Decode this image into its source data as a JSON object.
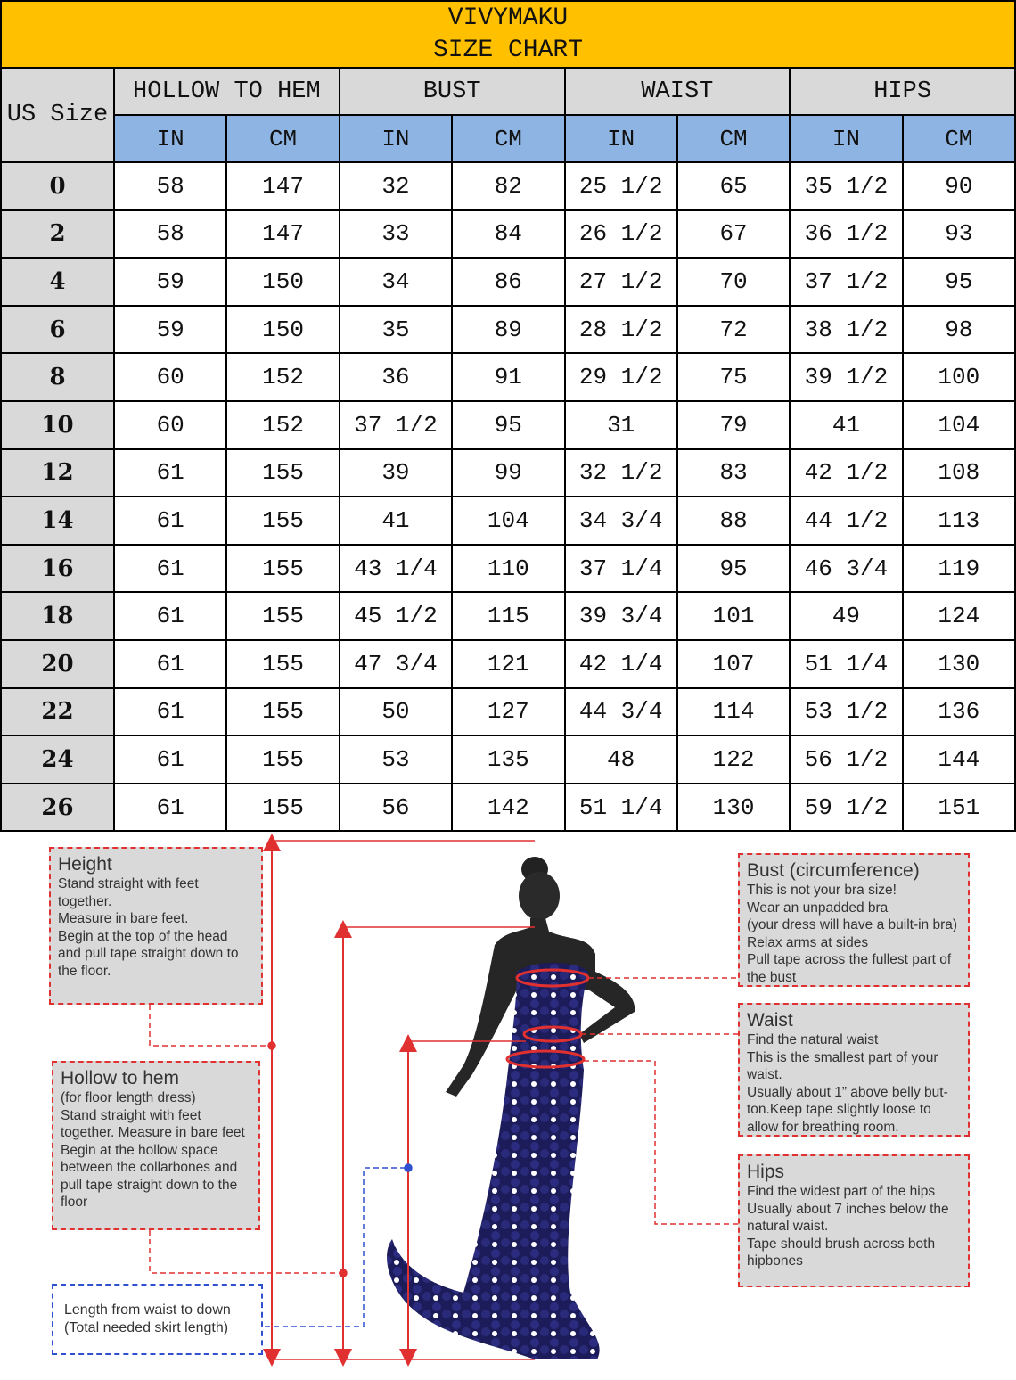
{
  "header": {
    "brand": "VIVYMAKU",
    "title": "SIZE CHART"
  },
  "table": {
    "size_header": "US Size",
    "groups": [
      "HOLLOW TO HEM",
      "BUST",
      "WAIST",
      "HIPS"
    ],
    "units": [
      "IN",
      "CM",
      "IN",
      "CM",
      "IN",
      "CM",
      "IN",
      "CM"
    ],
    "rows": [
      [
        "0",
        "58",
        "147",
        "32",
        "82",
        "25 1/2",
        "65",
        "35 1/2",
        "90"
      ],
      [
        "2",
        "58",
        "147",
        "33",
        "84",
        "26 1/2",
        "67",
        "36 1/2",
        "93"
      ],
      [
        "4",
        "59",
        "150",
        "34",
        "86",
        "27 1/2",
        "70",
        "37 1/2",
        "95"
      ],
      [
        "6",
        "59",
        "150",
        "35",
        "89",
        "28 1/2",
        "72",
        "38 1/2",
        "98"
      ],
      [
        "8",
        "60",
        "152",
        "36",
        "91",
        "29 1/2",
        "75",
        "39 1/2",
        "100"
      ],
      [
        "10",
        "60",
        "152",
        "37 1/2",
        "95",
        "31",
        "79",
        "41",
        "104"
      ],
      [
        "12",
        "61",
        "155",
        "39",
        "99",
        "32 1/2",
        "83",
        "42 1/2",
        "108"
      ],
      [
        "14",
        "61",
        "155",
        "41",
        "104",
        "34 3/4",
        "88",
        "44 1/2",
        "113"
      ],
      [
        "16",
        "61",
        "155",
        "43 1/4",
        "110",
        "37 1/4",
        "95",
        "46 3/4",
        "119"
      ],
      [
        "18",
        "61",
        "155",
        "45 1/2",
        "115",
        "39 3/4",
        "101",
        "49",
        "124"
      ],
      [
        "20",
        "61",
        "155",
        "47 3/4",
        "121",
        "42 1/4",
        "107",
        "51 1/4",
        "130"
      ],
      [
        "22",
        "61",
        "155",
        "50",
        "127",
        "44 3/4",
        "114",
        "53 1/2",
        "136"
      ],
      [
        "24",
        "61",
        "155",
        "53",
        "135",
        "48",
        "122",
        "56 1/2",
        "144"
      ],
      [
        "26",
        "61",
        "155",
        "56",
        "142",
        "51 1/4",
        "130",
        "59 1/2",
        "151"
      ]
    ]
  },
  "guide": [
    {
      "title": "Height",
      "lines": [
        "Stand straight with feet",
        "together.",
        "Measure in bare feet.",
        "Begin at the top of the head",
        "and pull tape straight down to",
        "the floor."
      ]
    },
    {
      "title": "Hollow to hem",
      "lines": [
        "(for floor length dress)",
        "Stand straight with feet",
        "together. Measure in bare feet",
        "Begin at the hollow space",
        "between the collarbones and",
        "pull tape straight down to the",
        "floor"
      ]
    },
    {
      "lines": [
        "Length from waist to down",
        "(Total needed skirt length)"
      ]
    },
    {
      "title": "Bust (circumference)",
      "lines": [
        "This is not your bra size!",
        "Wear an unpadded bra",
        "(your dress will have a built-in bra)",
        "Relax arms at sides",
        "Pull tape across the fullest part of",
        "the bust"
      ]
    },
    {
      "title": "Waist",
      "lines": [
        "Find the natural waist",
        "This is the smallest part of your",
        "waist.",
        "Usually about 1” above belly but-",
        "ton.Keep tape slightly loose to",
        "allow for breathing room."
      ]
    },
    {
      "title": "Hips",
      "lines": [
        "Find the widest part of the hips",
        "Usually about 7 inches below the",
        "natural waist.",
        "Tape should brush across both",
        "hipbones"
      ]
    }
  ]
}
